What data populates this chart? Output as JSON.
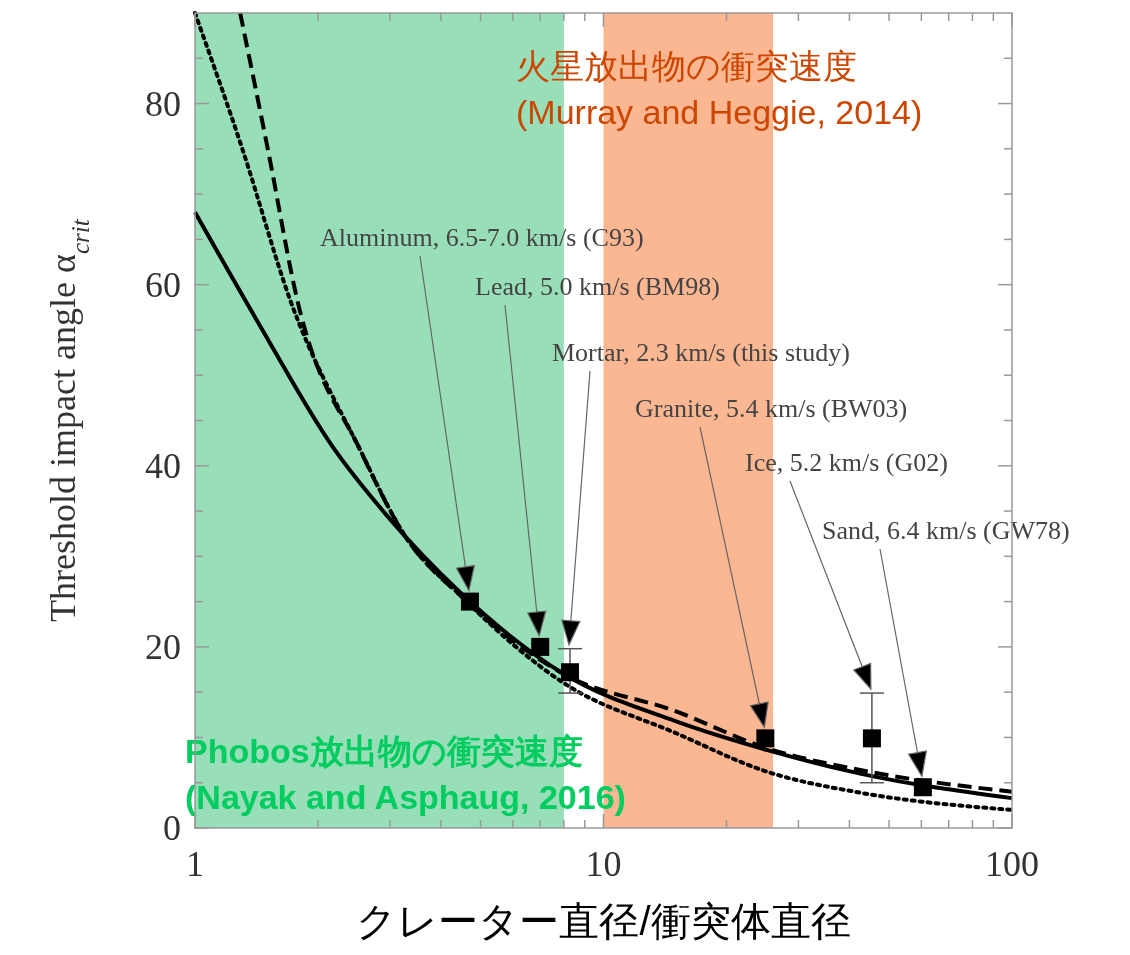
{
  "chart_data": {
    "type": "line",
    "xlabel": "クレーター直径/衝突体直径",
    "ylabel": "Threshold impact angle α$_{crit}$",
    "log": "x",
    "xlim": [
      1,
      100
    ],
    "ylim": [
      0,
      90
    ],
    "xticks": [
      1,
      {
        "value": 2,
        "label": null
      },
      {
        "value": 3,
        "label": null
      },
      {
        "value": 4,
        "label": null
      },
      {
        "value": 5,
        "label": null
      },
      {
        "value": 6,
        "label": null
      },
      {
        "value": 7,
        "label": null
      },
      {
        "value": 8,
        "label": null
      },
      {
        "value": 9,
        "label": null
      },
      10,
      {
        "value": 20,
        "label": null
      },
      {
        "value": 30,
        "label": null
      },
      {
        "value": 40,
        "label": null
      },
      {
        "value": 50,
        "label": null
      },
      {
        "value": 60,
        "label": null
      },
      {
        "value": 70,
        "label": null
      },
      {
        "value": 80,
        "label": null
      },
      {
        "value": 90,
        "label": null
      },
      100
    ],
    "yticks": [
      0,
      {
        "value": 5,
        "label": null
      },
      {
        "value": 10,
        "label": null
      },
      {
        "value": 15,
        "label": null
      },
      20,
      {
        "value": 25,
        "label": null
      },
      {
        "value": 30,
        "label": null
      },
      {
        "value": 35,
        "label": null
      },
      40,
      {
        "value": 45,
        "label": null
      },
      {
        "value": 50,
        "label": null
      },
      {
        "value": 55,
        "label": null
      },
      60,
      {
        "value": 65,
        "label": null
      },
      {
        "value": 70,
        "label": null
      },
      {
        "value": 75,
        "label": null
      },
      80,
      {
        "value": 85,
        "label": null
      }
    ],
    "grid": false,
    "series": [
      {
        "color": "#000000",
        "line_style": "solid",
        "x": [
          1,
          1.42,
          2.18,
          2.95,
          4.46,
          8,
          15,
          25.2,
          42.5,
          100
        ],
        "values": [
          68,
          56,
          42,
          34.5,
          26,
          17,
          11.8,
          8.6,
          6,
          3.3
        ]
      },
      {
        "color": "#000000",
        "line_style": "dashed",
        "x": [
          1.29,
          1.51,
          1.78,
          2.54,
          3.23,
          4.58,
          8,
          15,
          25.2,
          42.5,
          100
        ],
        "values": [
          90,
          74.8,
          58.3,
          41.7,
          32.6,
          25.2,
          17,
          12.9,
          8.8,
          6.4,
          4.0
        ]
      },
      {
        "color": "#000000",
        "line_style": "dotted",
        "x": [
          1,
          1.31,
          1.71,
          2.54,
          3.23,
          4.58,
          8,
          15,
          25.2,
          42.5,
          100
        ],
        "values": [
          90,
          74.8,
          58.3,
          41.7,
          32.6,
          25.2,
          16,
          10.5,
          6.2,
          3.9,
          2.0
        ]
      },
      {
        "type": "scatter",
        "color": "#000000",
        "marker": "square",
        "x": [
          4.71,
          7.0,
          8.28,
          24.9,
          45.4,
          60.5
        ],
        "values": [
          25,
          20,
          17.2,
          9.9,
          9.9,
          4.5
        ],
        "errors": [
          null,
          null,
          [
            14.9,
            19.8
          ],
          null,
          [
            5.0,
            14.9
          ],
          null
        ]
      }
    ],
    "bands": [
      {
        "axis": "x",
        "from": 1,
        "to": 8,
        "label": "Phobos放出物の衝突速度\n(Nayak and Asphaug, 2016)",
        "color": "#98dfb9"
      },
      {
        "axis": "x",
        "from": 10,
        "to": 26,
        "label": "火星放出物の衝突速度\n(Murray and Heggie, 2014)",
        "color": "#fbb692"
      }
    ],
    "annotations": [
      "Aluminum, 6.5-7.0 km/s (C93)",
      "Lead, 5.0 km/s (BM98)",
      "Mortar, 2.3 km/s (this study)",
      "Granite, 5.4 km/s (BW03)",
      "Ice, 5.2 km/s (G02)",
      "Sand, 6.4 km/s (GW78)"
    ]
  }
}
